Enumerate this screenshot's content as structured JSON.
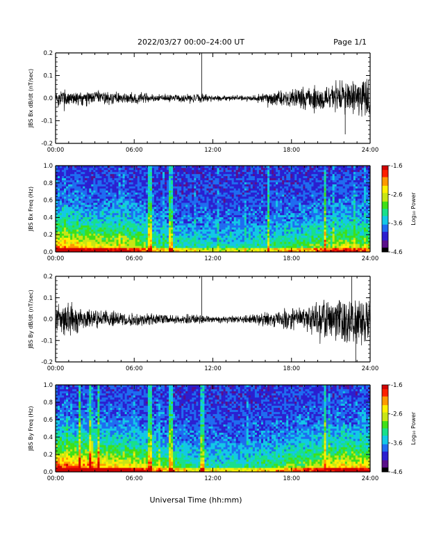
{
  "header": {
    "title": "2022/03/27  00:00–24:00 UT",
    "page_label": "Page 1/1"
  },
  "xaxis": {
    "label": "Universal Time (hh:mm)",
    "ticks": [
      "00:00",
      "06:00",
      "12:00",
      "18:00",
      "24:00"
    ]
  },
  "colorbar": {
    "label": "Log₁₀ Power",
    "ticks": [
      "-1.6",
      "-2.6",
      "-3.6",
      "-4.6"
    ],
    "range": [
      -4.6,
      -1.6
    ],
    "colormap": [
      "#000000",
      "#5a0f8a",
      "#2b1fd0",
      "#1e6cf0",
      "#12c8e6",
      "#18e08a",
      "#3fe018",
      "#c8e614",
      "#fff000",
      "#ff9a00",
      "#ff2000",
      "#d00000"
    ]
  },
  "chart_data": [
    {
      "type": "line",
      "title": "",
      "ylabel": "JBS Bx dB/dt (nT/sec)",
      "xlabel": "",
      "xlim": [
        0,
        24
      ],
      "ylim": [
        -0.2,
        0.2
      ],
      "yticks": [
        "0.2",
        "0.1",
        "0.0",
        "-0.1",
        "-0.2"
      ],
      "series": [
        {
          "x": [
            0,
            1,
            2,
            3,
            4,
            5,
            6,
            7,
            8,
            9,
            10,
            11,
            12,
            13,
            14,
            15,
            16,
            17,
            18,
            19,
            20,
            21,
            22,
            23,
            24
          ],
          "amp": [
            0.05,
            0.045,
            0.04,
            0.04,
            0.035,
            0.03,
            0.03,
            0.025,
            0.02,
            0.02,
            0.02,
            0.025,
            0.015,
            0.015,
            0.015,
            0.018,
            0.03,
            0.04,
            0.045,
            0.06,
            0.07,
            0.08,
            0.09,
            0.1,
            0.1
          ]
        }
      ],
      "spikes": [
        {
          "x": 11.15,
          "y": 0.2
        },
        {
          "x": 22.1,
          "y": -0.16
        }
      ]
    },
    {
      "type": "heatmap",
      "title": "",
      "ylabel": "JBS Bx Freq (Hz)",
      "xlim": [
        0,
        24
      ],
      "ylim": [
        0,
        1.0
      ],
      "yticks": [
        "1.0",
        "0.8",
        "0.6",
        "0.4",
        "0.2",
        "0.0"
      ],
      "zlim": [
        -4.6,
        -1.6
      ],
      "activity_hours": [
        0,
        2,
        4,
        6,
        8,
        10,
        12,
        14,
        16,
        18,
        20,
        22,
        24
      ],
      "activity_level": [
        0.75,
        0.65,
        0.6,
        0.55,
        0.35,
        0.3,
        0.28,
        0.27,
        0.3,
        0.38,
        0.45,
        0.55,
        0.5
      ],
      "bright_lines_hours": [
        7.2,
        8.8,
        16.2,
        20.6
      ]
    },
    {
      "type": "line",
      "title": "",
      "ylabel": "JBS By dB/dt (nT/sec)",
      "xlabel": "",
      "xlim": [
        0,
        24
      ],
      "ylim": [
        -0.2,
        0.2
      ],
      "yticks": [
        "0.2",
        "0.1",
        "0.0",
        "-0.1",
        "-0.2"
      ],
      "series": [
        {
          "x": [
            0,
            1,
            2,
            3,
            4,
            5,
            6,
            7,
            8,
            9,
            10,
            11,
            12,
            13,
            14,
            15,
            16,
            17,
            18,
            19,
            20,
            21,
            22,
            23,
            24
          ],
          "amp": [
            0.09,
            0.1,
            0.06,
            0.05,
            0.045,
            0.04,
            0.04,
            0.035,
            0.025,
            0.025,
            0.025,
            0.03,
            0.02,
            0.02,
            0.02,
            0.025,
            0.04,
            0.05,
            0.06,
            0.07,
            0.09,
            0.1,
            0.13,
            0.13,
            0.12
          ]
        }
      ],
      "spikes": [
        {
          "x": 11.15,
          "y": 0.2
        },
        {
          "x": 22.6,
          "y": 0.2
        },
        {
          "x": 22.9,
          "y": -0.2
        }
      ]
    },
    {
      "type": "heatmap",
      "title": "",
      "ylabel": "JBS By Freq (Hz)",
      "xlim": [
        0,
        24
      ],
      "ylim": [
        0,
        1.0
      ],
      "yticks": [
        "1.0",
        "0.8",
        "0.6",
        "0.4",
        "0.2",
        "0.0"
      ],
      "zlim": [
        -4.6,
        -1.6
      ],
      "activity_hours": [
        0,
        2,
        4,
        6,
        8,
        10,
        12,
        14,
        16,
        18,
        20,
        22,
        24
      ],
      "activity_level": [
        0.85,
        0.75,
        0.7,
        0.6,
        0.45,
        0.35,
        0.3,
        0.3,
        0.35,
        0.45,
        0.55,
        0.65,
        0.6
      ],
      "bright_lines_hours": [
        1.8,
        2.6,
        3.3,
        7.2,
        8.8,
        11.2,
        20.6
      ]
    }
  ]
}
